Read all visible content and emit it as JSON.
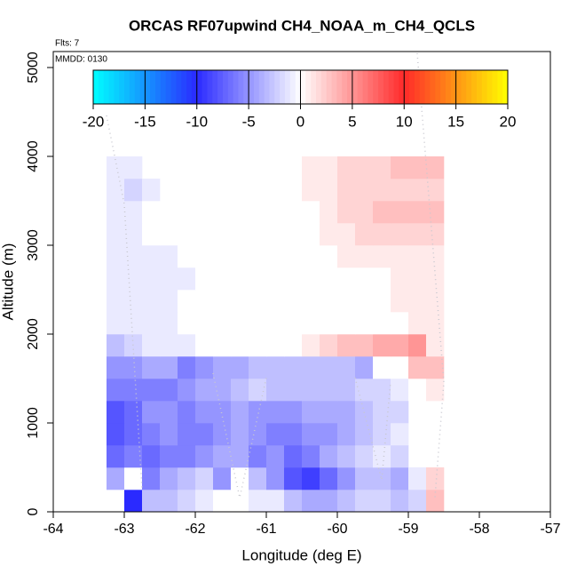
{
  "chart_data": {
    "type": "heatmap",
    "title": "ORCAS RF07upwind CH4_NOAA_m_CH4_QCLS",
    "flights_label": "Flts: 7",
    "date_label": "MMDD: 0130",
    "x_label": "Longitude (deg E)",
    "y_label": "Altitude (m)",
    "xlim": [
      -64,
      -57
    ],
    "ylim": [
      0,
      5180
    ],
    "xticks": [
      -64,
      -63,
      -62,
      -61,
      -60,
      -59,
      -58,
      -57
    ],
    "yticks": [
      0,
      1000,
      2000,
      3000,
      4000,
      5000
    ],
    "xbins": [
      -63.25,
      -63,
      -62.75,
      -62.5,
      -62.25,
      -62,
      -61.75,
      -61.5,
      -61.25,
      -61,
      -60.75,
      -60.5,
      -60.25,
      -60,
      -59.75,
      -59.5,
      -59.25,
      -59,
      -58.75,
      -58.5
    ],
    "ybins": [
      0,
      250,
      500,
      750,
      1000,
      1250,
      1500,
      1750,
      2000,
      2250,
      2500,
      2750,
      3000,
      3250,
      3500,
      3750,
      4000
    ],
    "z": [
      [
        null,
        -10,
        -3,
        -3,
        -2,
        -1,
        0,
        0,
        -1,
        -1,
        -3,
        -4,
        -4,
        -3,
        -2,
        -2,
        -3,
        -2,
        3
      ],
      [
        -4,
        0,
        -6,
        -4,
        -3,
        -2,
        -5,
        0,
        -3,
        -5,
        -8,
        -9,
        -7,
        -5,
        -3,
        -3,
        -4,
        -1,
        2
      ],
      [
        -7,
        -6,
        -7,
        -6,
        -6,
        -5,
        -4,
        -4,
        -6,
        -5,
        -7,
        -6,
        -4,
        -3,
        -2,
        -1,
        -2,
        null,
        null
      ],
      [
        -8,
        -7,
        -6,
        -5,
        -6,
        -6,
        -5,
        -4,
        -5,
        -6,
        -6,
        -5,
        -5,
        -4,
        -3,
        -2,
        -1,
        null,
        null
      ],
      [
        -8,
        -7,
        -5,
        -5,
        -6,
        -5,
        -5,
        -4,
        -5,
        -5,
        -5,
        -4,
        -4,
        -4,
        -3,
        -2,
        -2,
        null,
        null
      ],
      [
        -6,
        -6,
        -6,
        -6,
        -5,
        -4,
        -4,
        -3,
        -2,
        -3,
        -3,
        -3,
        -3,
        -3,
        -2,
        -2,
        -1,
        0,
        1
      ],
      [
        -5,
        -5,
        -4,
        -4,
        -6,
        -5,
        -4,
        -4,
        -3,
        -3,
        -3,
        -3,
        -3,
        -3,
        -4,
        0,
        0,
        3,
        3
      ],
      [
        -3,
        -2,
        -1,
        -1,
        -1,
        0,
        0,
        0,
        0,
        0,
        0,
        1,
        2,
        3,
        3,
        4,
        4,
        5,
        1
      ],
      [
        -1,
        -1,
        -1,
        -1,
        0,
        0,
        0,
        0,
        0,
        0,
        0,
        0,
        0,
        0,
        0,
        0,
        0,
        1,
        1
      ],
      [
        -1,
        -1,
        -1,
        -1,
        0,
        0,
        0,
        0,
        0,
        0,
        0,
        0,
        0,
        0,
        0,
        0,
        1,
        1,
        1
      ],
      [
        -1,
        -1,
        -1,
        -1,
        -1,
        0,
        0,
        0,
        0,
        0,
        0,
        0,
        0,
        0,
        0,
        0,
        1,
        1,
        1
      ],
      [
        -1,
        -1,
        -1,
        -1,
        0,
        0,
        0,
        0,
        0,
        0,
        0,
        0,
        0,
        1,
        1,
        1,
        1,
        1,
        1
      ],
      [
        -1,
        -1,
        0,
        0,
        0,
        0,
        0,
        0,
        0,
        0,
        0,
        0,
        1,
        1,
        2,
        2,
        2,
        2,
        2
      ],
      [
        -1,
        -1,
        0,
        0,
        null,
        null,
        null,
        null,
        null,
        null,
        null,
        0,
        1,
        2,
        2,
        3,
        3,
        3,
        3
      ],
      [
        -1,
        -2,
        -1,
        null,
        null,
        null,
        null,
        null,
        null,
        null,
        null,
        1,
        1,
        2,
        2,
        2,
        2,
        2,
        2
      ],
      [
        -1,
        -1,
        null,
        null,
        null,
        null,
        null,
        null,
        null,
        null,
        null,
        1,
        1,
        2,
        2,
        2,
        3,
        3,
        3
      ]
    ],
    "colorbar_lim": [
      -20,
      20
    ],
    "colorbar_ticks": [
      -20,
      -15,
      -10,
      -5,
      0,
      5,
      10,
      15,
      20
    ],
    "colorscale": [
      [
        -20,
        "#00ffff"
      ],
      [
        -10,
        "#2a2aff"
      ],
      [
        0,
        "#ffffff"
      ],
      [
        10,
        "#ff2a2a"
      ],
      [
        20,
        "#ffff00"
      ]
    ]
  }
}
